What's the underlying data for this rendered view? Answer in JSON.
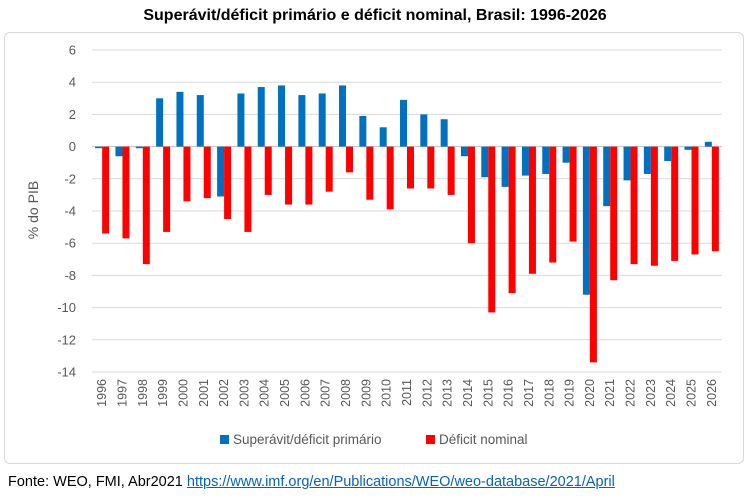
{
  "source": {
    "prefix": "Fonte: WEO, FMI, Abr2021 ",
    "link_text": "https://www.imf.org/en/Publications/WEO/weo-database/2021/April"
  },
  "chart_data": {
    "type": "bar",
    "title": "Superávit/déficit primário e déficit nominal, Brasil: 1996-2026",
    "xlabel": "",
    "ylabel": "% do PIB",
    "ylim": [
      -14,
      6
    ],
    "yticks": [
      6,
      4,
      2,
      0,
      -2,
      -4,
      -6,
      -8,
      -10,
      -12,
      -14
    ],
    "grid": true,
    "legend_position": "bottom",
    "categories": [
      "1996",
      "1997",
      "1998",
      "1999",
      "2000",
      "2001",
      "2002",
      "2003",
      "2004",
      "2005",
      "2006",
      "2007",
      "2008",
      "2009",
      "2010",
      "2011",
      "2012",
      "2013",
      "2014",
      "2015",
      "2016",
      "2017",
      "2018",
      "2019",
      "2020",
      "2021",
      "2022",
      "2023",
      "2024",
      "2025",
      "2026"
    ],
    "series": [
      {
        "name": "Superávit/déficit primário",
        "color": "#0070c0",
        "values": [
          -0.1,
          -0.6,
          -0.1,
          3.0,
          3.4,
          3.2,
          -3.1,
          3.3,
          3.7,
          3.8,
          3.2,
          3.3,
          3.8,
          1.9,
          1.2,
          2.9,
          2.0,
          1.7,
          -0.6,
          -1.9,
          -2.5,
          -1.8,
          -1.7,
          -1.0,
          -9.2,
          -3.7,
          -2.1,
          -1.7,
          -0.9,
          -0.2,
          0.3
        ]
      },
      {
        "name": "Déficit nominal",
        "color": "#ff0000",
        "values": [
          -5.4,
          -5.7,
          -7.3,
          -5.3,
          -3.4,
          -3.2,
          -4.5,
          -5.3,
          -3.0,
          -3.6,
          -3.6,
          -2.8,
          -1.6,
          -3.3,
          -3.9,
          -2.6,
          -2.6,
          -3.0,
          -6.0,
          -10.3,
          -9.1,
          -7.9,
          -7.2,
          -5.9,
          -13.4,
          -8.3,
          -7.3,
          -7.4,
          -7.1,
          -6.7,
          -6.5
        ]
      }
    ]
  }
}
